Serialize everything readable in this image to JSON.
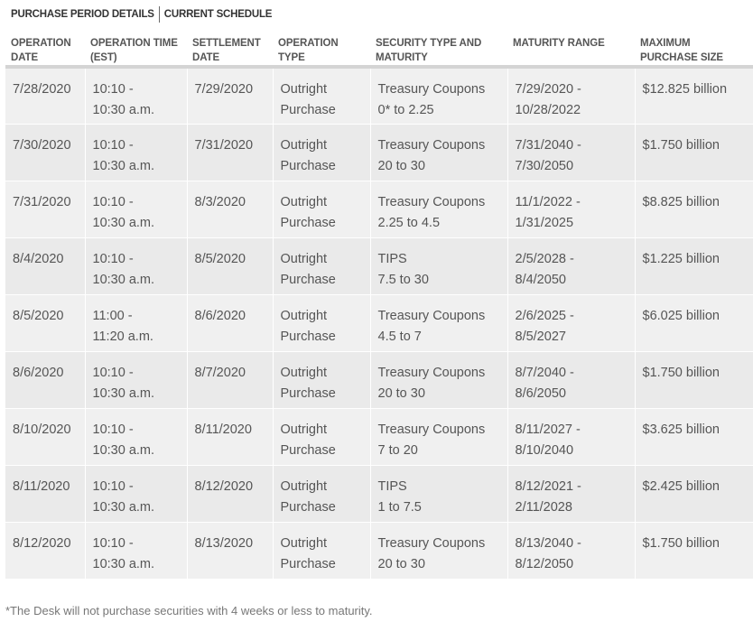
{
  "tabs": [
    {
      "label": "PURCHASE PERIOD DETAILS"
    },
    {
      "label": "CURRENT SCHEDULE"
    }
  ],
  "table": {
    "headers": [
      {
        "line1": "OPERATION",
        "line2": "DATE"
      },
      {
        "line1": "OPERATION TIME",
        "line2": "(EST)"
      },
      {
        "line1": "SETTLEMENT",
        "line2": "DATE"
      },
      {
        "line1": "OPERATION",
        "line2": "TYPE"
      },
      {
        "line1": "SECURITY TYPE AND",
        "line2": "MATURITY"
      },
      {
        "line1": "MATURITY RANGE",
        "line2": ""
      },
      {
        "line1": "MAXIMUM",
        "line2": "PURCHASE SIZE"
      }
    ],
    "rows": [
      {
        "op_date": "7/28/2020",
        "time1": "10:10 -",
        "time2": "10:30 a.m.",
        "settle": "7/29/2020",
        "type1": "Outright",
        "type2": "Purchase",
        "sec1": "Treasury Coupons",
        "sec2": "0* to 2.25",
        "range1": "7/29/2020 -",
        "range2": "10/28/2022",
        "size": "$12.825 billion"
      },
      {
        "op_date": "7/30/2020",
        "time1": "10:10 -",
        "time2": "10:30 a.m.",
        "settle": "7/31/2020",
        "type1": "Outright",
        "type2": "Purchase",
        "sec1": "Treasury Coupons",
        "sec2": "20 to 30",
        "range1": "7/31/2040 -",
        "range2": "7/30/2050",
        "size": "$1.750 billion"
      },
      {
        "op_date": "7/31/2020",
        "time1": "10:10 -",
        "time2": "10:30 a.m.",
        "settle": "8/3/2020",
        "type1": "Outright",
        "type2": "Purchase",
        "sec1": "Treasury Coupons",
        "sec2": "2.25 to 4.5",
        "range1": "11/1/2022 -",
        "range2": "1/31/2025",
        "size": "$8.825 billion"
      },
      {
        "op_date": "8/4/2020",
        "time1": "10:10 -",
        "time2": "10:30 a.m.",
        "settle": "8/5/2020",
        "type1": "Outright",
        "type2": "Purchase",
        "sec1": "TIPS",
        "sec2": "7.5 to 30",
        "range1": "2/5/2028 -",
        "range2": "8/4/2050",
        "size": "$1.225 billion"
      },
      {
        "op_date": "8/5/2020",
        "time1": "11:00 -",
        "time2": "11:20 a.m.",
        "settle": "8/6/2020",
        "type1": "Outright",
        "type2": "Purchase",
        "sec1": "Treasury Coupons",
        "sec2": "4.5 to 7",
        "range1": "2/6/2025 -",
        "range2": "8/5/2027",
        "size": "$6.025 billion"
      },
      {
        "op_date": "8/6/2020",
        "time1": "10:10 -",
        "time2": "10:30 a.m.",
        "settle": "8/7/2020",
        "type1": "Outright",
        "type2": "Purchase",
        "sec1": "Treasury Coupons",
        "sec2": "20 to 30",
        "range1": "8/7/2040 -",
        "range2": "8/6/2050",
        "size": "$1.750 billion"
      },
      {
        "op_date": "8/10/2020",
        "time1": "10:10 -",
        "time2": "10:30 a.m.",
        "settle": "8/11/2020",
        "type1": "Outright",
        "type2": "Purchase",
        "sec1": "Treasury Coupons",
        "sec2": "7 to 20",
        "range1": "8/11/2027 -",
        "range2": "8/10/2040",
        "size": "$3.625 billion"
      },
      {
        "op_date": "8/11/2020",
        "time1": "10:10 -",
        "time2": "10:30 a.m.",
        "settle": "8/12/2020",
        "type1": "Outright",
        "type2": "Purchase",
        "sec1": "TIPS",
        "sec2": "1 to 7.5",
        "range1": "8/12/2021 -",
        "range2": "2/11/2028",
        "size": "$2.425 billion"
      },
      {
        "op_date": "8/12/2020",
        "time1": "10:10 -",
        "time2": "10:30 a.m.",
        "settle": "8/13/2020",
        "type1": "Outright",
        "type2": "Purchase",
        "sec1": "Treasury Coupons",
        "sec2": "20 to 30",
        "range1": "8/13/2040 -",
        "range2": "8/12/2050",
        "size": "$1.750 billion"
      }
    ]
  },
  "footnote": "*The Desk will not purchase securities with 4 weeks or less to maturity."
}
